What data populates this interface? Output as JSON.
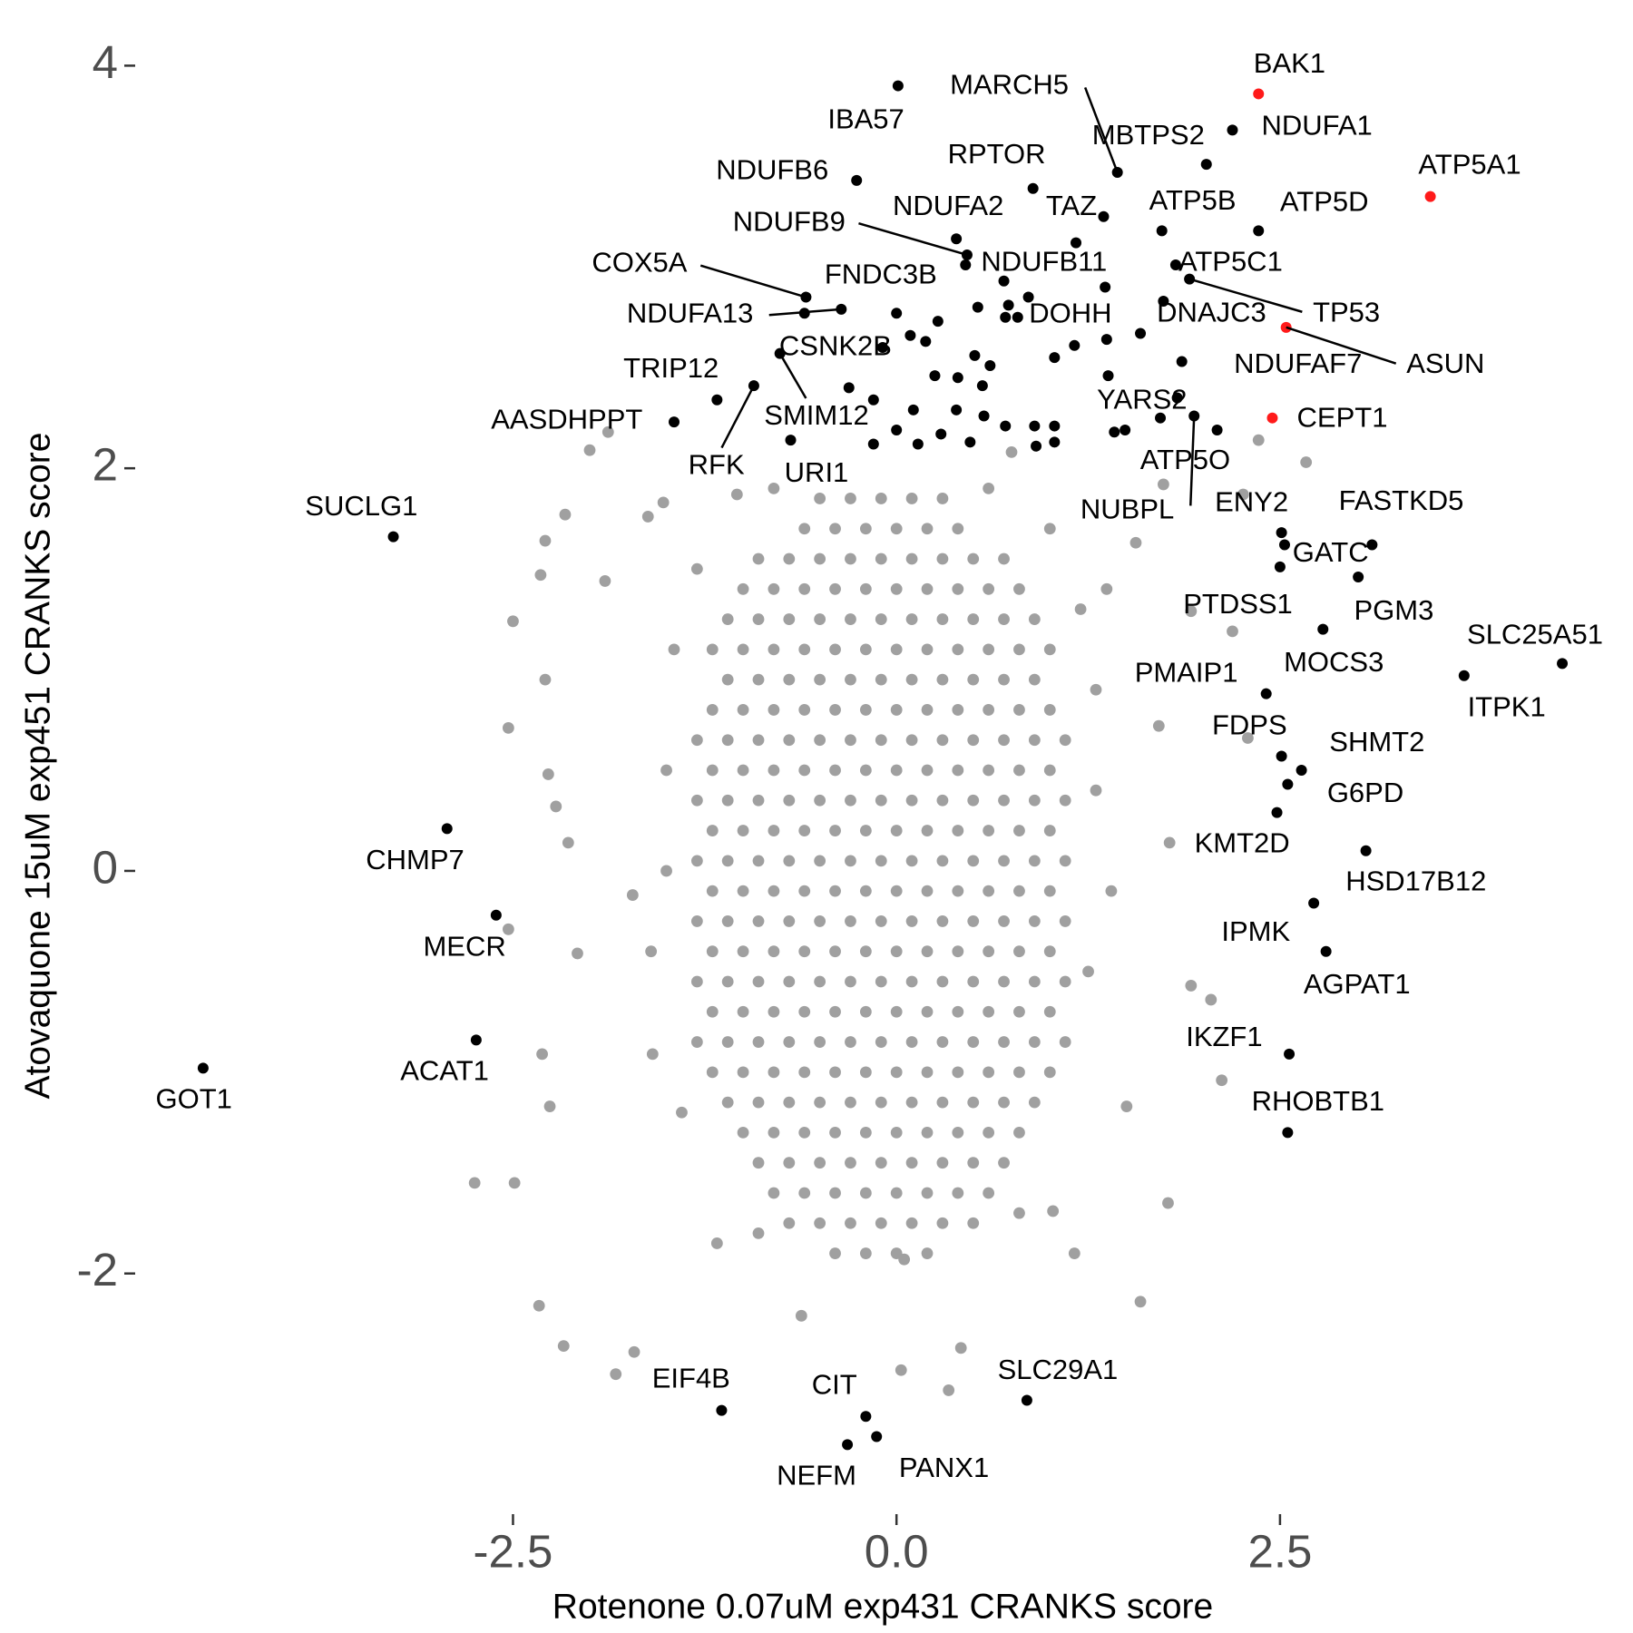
{
  "chart_data": {
    "type": "scatter",
    "xlabel": "Rotenone 0.07uM exp431 CRANKS score",
    "ylabel": "Atovaquone 15uM exp451 CRANKS score",
    "xlim": [
      -4.75,
      4.6
    ],
    "ylim": [
      -3.2,
      4.2
    ],
    "xticks": [
      -2.5,
      {
        "value": 0,
        "label": "0.0"
      },
      2.5
    ],
    "yticks": [
      -2,
      0,
      2,
      4
    ],
    "series": [
      {
        "color": "#a0a0a0",
        "x": [
          -0.5,
          -0.3,
          -0.1,
          0.1,
          0.3,
          -0.6,
          -0.4,
          -0.2,
          0,
          0.2,
          0.4,
          -0.9,
          -0.7,
          -0.5,
          -0.3,
          -0.1,
          0.1,
          0.3,
          0.5,
          0.7,
          -1,
          -0.8,
          -0.6,
          -0.4,
          -0.2,
          0,
          0.2,
          0.4,
          0.6,
          0.8,
          -1.1,
          -0.9,
          -0.7,
          -0.5,
          -0.3,
          -0.1,
          0.1,
          0.3,
          0.5,
          0.7,
          0.9,
          -1.2,
          -1,
          -0.8,
          -0.6,
          -0.4,
          -0.2,
          0,
          0.2,
          0.4,
          0.6,
          0.8,
          1,
          -1.1,
          -0.9,
          -0.7,
          -0.5,
          -0.3,
          -0.1,
          0.1,
          0.3,
          0.5,
          0.7,
          0.9,
          -1.2,
          -1,
          -0.8,
          -0.6,
          -0.4,
          -0.2,
          0,
          0.2,
          0.4,
          0.6,
          0.8,
          1,
          -1.3,
          -1.1,
          -0.9,
          -0.7,
          -0.5,
          -0.3,
          -0.1,
          0.1,
          0.3,
          0.5,
          0.7,
          0.9,
          1.1,
          -1.2,
          -1,
          -0.8,
          -0.6,
          -0.4,
          -0.2,
          0,
          0.2,
          0.4,
          0.6,
          0.8,
          1,
          -1.3,
          -1.1,
          -0.9,
          -0.7,
          -0.5,
          -0.3,
          -0.1,
          0.1,
          0.3,
          0.5,
          0.7,
          0.9,
          1.1,
          -1.2,
          -1,
          -0.8,
          -0.6,
          -0.4,
          -0.2,
          0,
          0.2,
          0.4,
          0.6,
          0.8,
          1,
          -1.3,
          -1.1,
          -0.9,
          -0.7,
          -0.5,
          -0.3,
          -0.1,
          0.1,
          0.3,
          0.5,
          0.7,
          0.9,
          1.1,
          -1.2,
          -1,
          -0.8,
          -0.6,
          -0.4,
          -0.2,
          0,
          0.2,
          0.4,
          0.6,
          0.8,
          1,
          -1.3,
          -1.1,
          -0.9,
          -0.7,
          -0.5,
          -0.3,
          -0.1,
          0.1,
          0.3,
          0.5,
          0.7,
          0.9,
          1.1,
          -1.2,
          -1,
          -0.8,
          -0.6,
          -0.4,
          -0.2,
          0,
          0.2,
          0.4,
          0.6,
          0.8,
          1,
          -1.3,
          -1.1,
          -0.9,
          -0.7,
          -0.5,
          -0.3,
          -0.1,
          0.1,
          0.3,
          0.5,
          0.7,
          0.9,
          1.1,
          -1.2,
          -1,
          -0.8,
          -0.6,
          -0.4,
          -0.2,
          0,
          0.2,
          0.4,
          0.6,
          0.8,
          1,
          -1.3,
          -1.1,
          -0.9,
          -0.7,
          -0.5,
          -0.3,
          -0.1,
          0.1,
          0.3,
          0.5,
          0.7,
          0.9,
          1.1,
          -1.2,
          -1,
          -0.8,
          -0.6,
          -0.4,
          -0.2,
          0,
          0.2,
          0.4,
          0.6,
          0.8,
          1,
          -1.1,
          -0.9,
          -0.7,
          -0.5,
          -0.3,
          -0.1,
          0.1,
          0.3,
          0.5,
          0.7,
          0.9,
          -1,
          -0.8,
          -0.6,
          -0.4,
          -0.2,
          0,
          0.2,
          0.4,
          0.6,
          0.8,
          -0.9,
          -0.7,
          -0.5,
          -0.3,
          -0.1,
          0.1,
          0.3,
          0.5,
          0.7,
          -0.8,
          -0.6,
          -0.4,
          -0.2,
          0,
          0.2,
          0.4,
          0.6,
          -0.7,
          -0.5,
          -0.3,
          -0.1,
          0.1,
          0.3,
          0.5,
          -0.4,
          -0.2,
          0,
          0.2,
          -2.0,
          -1.88,
          -1.52,
          -1.62,
          -2.16,
          -2.29,
          -2.32,
          -1.9,
          -2.5,
          -2.53,
          -2.29,
          -2.27,
          -2.22,
          -2.14,
          -2.53,
          -2.08,
          -2.31,
          -2.26,
          -2.75,
          -2.49,
          -2.33,
          -2.17,
          -1.71,
          -1.83,
          2.67,
          2.36,
          2.26,
          1.74,
          1.56,
          1.92,
          2.19,
          2.29,
          1.78,
          1.92,
          2.12,
          1.77,
          1.59,
          1.16,
          0.34,
          0.03,
          0.42,
          0.05,
          1.37,
          1.71,
          -1.72,
          -1.59,
          -1.17,
          -0.62,
          1.02,
          1.5,
          0.75,
          -1.04,
          2.05,
          -1.5,
          -1.6,
          -1.45,
          1.3,
          1.25,
          1.4,
          -1.4,
          1.2,
          -1.3,
          1.0,
          -0.8,
          0.6,
          -0.9,
          0.8,
          1.3,
          -1.5
        ],
        "y": [
          1.85,
          1.85,
          1.85,
          1.85,
          1.85,
          1.7,
          1.7,
          1.7,
          1.7,
          1.7,
          1.7,
          1.55,
          1.55,
          1.55,
          1.55,
          1.55,
          1.55,
          1.55,
          1.55,
          1.55,
          1.4,
          1.4,
          1.4,
          1.4,
          1.4,
          1.4,
          1.4,
          1.4,
          1.4,
          1.4,
          1.25,
          1.25,
          1.25,
          1.25,
          1.25,
          1.25,
          1.25,
          1.25,
          1.25,
          1.25,
          1.25,
          1.1,
          1.1,
          1.1,
          1.1,
          1.1,
          1.1,
          1.1,
          1.1,
          1.1,
          1.1,
          1.1,
          1.1,
          0.95,
          0.95,
          0.95,
          0.95,
          0.95,
          0.95,
          0.95,
          0.95,
          0.95,
          0.95,
          0.95,
          0.8,
          0.8,
          0.8,
          0.8,
          0.8,
          0.8,
          0.8,
          0.8,
          0.8,
          0.8,
          0.8,
          0.8,
          0.65,
          0.65,
          0.65,
          0.65,
          0.65,
          0.65,
          0.65,
          0.65,
          0.65,
          0.65,
          0.65,
          0.65,
          0.65,
          0.5,
          0.5,
          0.5,
          0.5,
          0.5,
          0.5,
          0.5,
          0.5,
          0.5,
          0.5,
          0.5,
          0.5,
          0.35,
          0.35,
          0.35,
          0.35,
          0.35,
          0.35,
          0.35,
          0.35,
          0.35,
          0.35,
          0.35,
          0.35,
          0.35,
          0.2,
          0.2,
          0.2,
          0.2,
          0.2,
          0.2,
          0.2,
          0.2,
          0.2,
          0.2,
          0.2,
          0.2,
          0.05,
          0.05,
          0.05,
          0.05,
          0.05,
          0.05,
          0.05,
          0.05,
          0.05,
          0.05,
          0.05,
          0.05,
          0.05,
          -0.1,
          -0.1,
          -0.1,
          -0.1,
          -0.1,
          -0.1,
          -0.1,
          -0.1,
          -0.1,
          -0.1,
          -0.1,
          -0.1,
          -0.25,
          -0.25,
          -0.25,
          -0.25,
          -0.25,
          -0.25,
          -0.25,
          -0.25,
          -0.25,
          -0.25,
          -0.25,
          -0.25,
          -0.25,
          -0.4,
          -0.4,
          -0.4,
          -0.4,
          -0.4,
          -0.4,
          -0.4,
          -0.4,
          -0.4,
          -0.4,
          -0.4,
          -0.4,
          -0.55,
          -0.55,
          -0.55,
          -0.55,
          -0.55,
          -0.55,
          -0.55,
          -0.55,
          -0.55,
          -0.55,
          -0.55,
          -0.55,
          -0.55,
          -0.7,
          -0.7,
          -0.7,
          -0.7,
          -0.7,
          -0.7,
          -0.7,
          -0.7,
          -0.7,
          -0.7,
          -0.7,
          -0.7,
          -0.85,
          -0.85,
          -0.85,
          -0.85,
          -0.85,
          -0.85,
          -0.85,
          -0.85,
          -0.85,
          -0.85,
          -0.85,
          -0.85,
          -0.85,
          -1.0,
          -1.0,
          -1.0,
          -1.0,
          -1.0,
          -1.0,
          -1.0,
          -1.0,
          -1.0,
          -1.0,
          -1.0,
          -1.0,
          -1.15,
          -1.15,
          -1.15,
          -1.15,
          -1.15,
          -1.15,
          -1.15,
          -1.15,
          -1.15,
          -1.15,
          -1.15,
          -1.3,
          -1.3,
          -1.3,
          -1.3,
          -1.3,
          -1.3,
          -1.3,
          -1.3,
          -1.3,
          -1.3,
          -1.45,
          -1.45,
          -1.45,
          -1.45,
          -1.45,
          -1.45,
          -1.45,
          -1.45,
          -1.45,
          -1.6,
          -1.6,
          -1.6,
          -1.6,
          -1.6,
          -1.6,
          -1.6,
          -1.6,
          -1.75,
          -1.75,
          -1.75,
          -1.75,
          -1.75,
          -1.75,
          -1.75,
          -1.9,
          -1.9,
          -1.9,
          -1.9,
          2.09,
          2.18,
          1.83,
          1.76,
          1.77,
          1.64,
          1.47,
          1.44,
          1.24,
          0.71,
          0.95,
          0.48,
          0.32,
          0.14,
          -0.29,
          -0.41,
          -0.91,
          -1.17,
          -1.55,
          -1.55,
          -2.16,
          -2.36,
          -2.39,
          -2.5,
          2.03,
          2.14,
          1.87,
          1.92,
          1.63,
          1.29,
          1.19,
          0.66,
          0.14,
          -0.57,
          -1.04,
          -1.65,
          -2.14,
          -1.9,
          -2.58,
          -2.48,
          -2.37,
          -1.93,
          1.4,
          0.72,
          -0.12,
          -0.91,
          -1.85,
          -2.21,
          -1.69,
          -1.17,
          2.08,
          1.87,
          -0.64,
          0.5,
          -0.4,
          1.1,
          0.4,
          -0.5,
          -0.1,
          -1.2,
          1.3,
          1.5,
          1.7,
          1.9,
          1.9,
          -1.8,
          -1.7,
          0.9,
          0.0
        ]
      },
      {
        "color": "#000000",
        "x": [
          0,
          0.09,
          0.19,
          0.27,
          0.51,
          0.53,
          0.71,
          0.7,
          0.86,
          1.17,
          1.36,
          1.37,
          1.16,
          1.03,
          1.38,
          1.42,
          1.49,
          0.9,
          1.03,
          0.91,
          1.03,
          0.71,
          0.57,
          0.48,
          0.39,
          0.4,
          0.25,
          0.11,
          0,
          0.14,
          0.29,
          -0.15,
          -0.15,
          -0.31,
          0.56,
          0.61,
          1.72,
          1.74,
          0.73
        ],
        "y": [
          2.77,
          2.66,
          2.63,
          2.73,
          2.56,
          2.8,
          2.75,
          2.93,
          2.85,
          3.12,
          2.9,
          2.64,
          2.61,
          2.55,
          2.46,
          2.18,
          2.19,
          2.21,
          2.21,
          2.11,
          2.13,
          2.21,
          2.26,
          2.13,
          2.29,
          2.45,
          2.46,
          2.29,
          2.19,
          2.12,
          2.17,
          2.12,
          2.34,
          2.4,
          2.41,
          2.51,
          2.25,
          2.83,
          2.81
        ]
      },
      {
        "color": "#000000",
        "labels": [
          "NDUFA1",
          "MBTPS2",
          "MARCH5",
          "IBA57",
          "NDUFB6",
          "RPTOR",
          "TAZ",
          "ATP5B",
          "ATP5D",
          "NDUFA2",
          "NDUFB9",
          "NDUFB11",
          "ATP5C1",
          "TP53",
          "COX5A",
          "FNDC3B",
          "NDUFA13",
          "DOHH",
          "DNAJC3",
          "CSNK2B",
          "SMIM12",
          "NDUFAF7",
          "TRIP12",
          "RFK",
          "AASDHPPT",
          "URI1",
          "YARS2",
          "ATP5O",
          "NUBPL",
          "ENY2",
          "FASTKD5",
          "GATC",
          "PTDSS1",
          "PGM3",
          "SLC25A51",
          "ITPK1",
          "MOCS3",
          "PMAIP1",
          "FDPS",
          "SHMT2",
          "G6PD",
          "KMT2D",
          "HSD17B12",
          "IPMK",
          "AGPAT1",
          "IKZF1",
          "RHOBTB1",
          "SUCLG1",
          "CHMP7",
          "MECR",
          "ACAT1",
          "GOT1",
          "EIF4B",
          "CIT",
          "PANX1",
          "NEFM",
          "SLC29A1"
        ],
        "x": [
          2.19,
          2.02,
          1.44,
          0.01,
          -0.26,
          0.89,
          1.35,
          1.73,
          2.36,
          0.39,
          0.46,
          0.45,
          1.82,
          1.91,
          -0.59,
          -0.6,
          -0.36,
          0.79,
          1.59,
          -0.09,
          -0.76,
          1.86,
          -1.17,
          -0.93,
          -1.45,
          -0.69,
          1.83,
          2.09,
          1.94,
          2.51,
          3.1,
          2.53,
          2.5,
          3.01,
          4.34,
          3.7,
          2.78,
          2.41,
          2.51,
          2.64,
          2.55,
          2.48,
          3.06,
          2.72,
          2.8,
          2.56,
          2.55,
          -3.28,
          -2.93,
          -2.61,
          -2.74,
          -4.52,
          -1.14,
          -0.2,
          -0.13,
          -0.32,
          0.85
        ],
        "y": [
          3.68,
          3.51,
          3.47,
          3.9,
          3.43,
          3.39,
          3.25,
          3.18,
          3.18,
          3.14,
          3.06,
          3.01,
          3.01,
          2.94,
          2.85,
          2.77,
          2.79,
          2.75,
          2.67,
          2.6,
          2.57,
          2.53,
          2.34,
          2.41,
          2.23,
          2.14,
          2.35,
          2.19,
          2.26,
          1.68,
          1.62,
          1.62,
          1.51,
          1.46,
          1.03,
          0.97,
          1.2,
          0.88,
          0.57,
          0.5,
          0.43,
          0.29,
          0.1,
          -0.16,
          -0.4,
          -0.91,
          -1.3,
          1.66,
          0.21,
          -0.22,
          -0.84,
          -0.98,
          -2.68,
          -2.71,
          -2.81,
          -2.85,
          -2.63
        ]
      },
      {
        "color": "#ff1a1a",
        "labels": [
          "BAK1",
          "ATP5A1",
          "ASUN",
          "CEPT1"
        ],
        "x": [
          2.36,
          3.48,
          2.54,
          2.45
        ],
        "y": [
          3.86,
          3.35,
          2.7,
          2.25
        ]
      }
    ]
  }
}
